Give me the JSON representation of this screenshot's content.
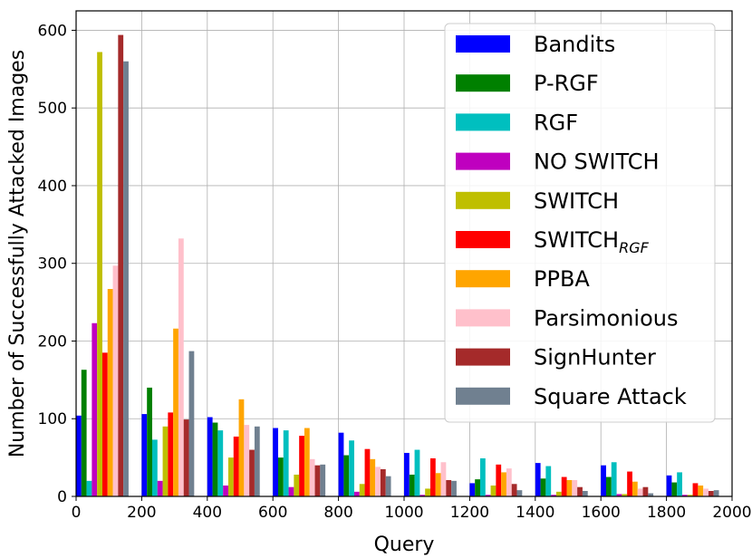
{
  "chart_data": {
    "type": "bar",
    "xlabel": "Query",
    "ylabel": "Number of Successfully Attacked Images",
    "xlim": [
      0,
      2000
    ],
    "ylim": [
      0,
      625
    ],
    "xticks": [
      "0",
      "200",
      "400",
      "600",
      "800",
      "1000",
      "1200",
      "1400",
      "1600",
      "1800",
      "2000"
    ],
    "yticks": [
      "0",
      "100",
      "200",
      "300",
      "400",
      "500",
      "600"
    ],
    "grid": true,
    "legend_position": "top-right",
    "bin_starts": [
      0,
      200,
      400,
      600,
      800,
      1000,
      1200,
      1400,
      1600,
      1800
    ],
    "bin_width": 200,
    "series": [
      {
        "name": "Bandits",
        "legend_main": "Bandits",
        "legend_sub": "",
        "color": "#0000ff",
        "values": [
          104,
          106,
          102,
          88,
          82,
          56,
          17,
          43,
          40,
          27
        ]
      },
      {
        "name": "P-RGF",
        "legend_main": "P-RGF",
        "legend_sub": "",
        "color": "#008000",
        "values": [
          163,
          140,
          95,
          50,
          53,
          28,
          22,
          23,
          25,
          18
        ]
      },
      {
        "name": "RGF",
        "legend_main": "RGF",
        "legend_sub": "",
        "color": "#00bfbf",
        "values": [
          20,
          73,
          85,
          85,
          72,
          60,
          49,
          39,
          44,
          31
        ]
      },
      {
        "name": "NO SWITCH",
        "legend_main": "NO SWITCH",
        "legend_sub": "",
        "color": "#bf00bf",
        "values": [
          223,
          20,
          14,
          12,
          6,
          2,
          2,
          2,
          3,
          2
        ]
      },
      {
        "name": "SWITCH",
        "legend_main": "SWITCH",
        "legend_sub": "",
        "color": "#bfbf00",
        "values": [
          572,
          90,
          50,
          28,
          16,
          10,
          14,
          6,
          3,
          2
        ]
      },
      {
        "name": "SWITCH_RGF",
        "legend_main": "SWITCH",
        "legend_sub": "RGF",
        "color": "#ff0000",
        "values": [
          185,
          108,
          77,
          78,
          61,
          49,
          41,
          25,
          32,
          17
        ]
      },
      {
        "name": "PPBA",
        "legend_main": "PPBA",
        "legend_sub": "",
        "color": "#ffa500",
        "values": [
          267,
          216,
          125,
          88,
          48,
          30,
          31,
          21,
          19,
          14
        ]
      },
      {
        "name": "Parsimonious",
        "legend_main": "Parsimonious",
        "legend_sub": "",
        "color": "#ffc0cb",
        "values": [
          297,
          332,
          92,
          48,
          38,
          44,
          36,
          21,
          10,
          10
        ]
      },
      {
        "name": "SignHunter",
        "legend_main": "SignHunter",
        "legend_sub": "",
        "color": "#a52a2a",
        "values": [
          594,
          99,
          60,
          40,
          35,
          21,
          16,
          12,
          12,
          7
        ]
      },
      {
        "name": "Square Attack",
        "legend_main": "Square Attack",
        "legend_sub": "",
        "color": "#708090",
        "values": [
          560,
          187,
          90,
          41,
          26,
          20,
          8,
          7,
          4,
          8
        ]
      }
    ]
  }
}
